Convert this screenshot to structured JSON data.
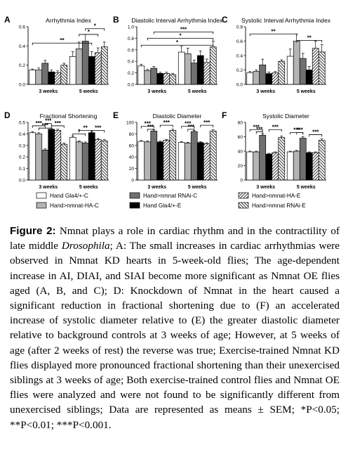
{
  "figure": {
    "legend": [
      {
        "label": "Hand Gla4/+-C",
        "color": "#ffffff"
      },
      {
        "label": "Hand>nmnat RNAi-C",
        "color": "#707070"
      },
      {
        "label": "Hand>nmnat-HA-E",
        "color": "hatch"
      },
      {
        "label": "Hand>nmnat-HA-C",
        "color": "#b4b4b4"
      },
      {
        "label": "Hand Gla4/+-E",
        "color": "#000000"
      },
      {
        "label": "Hand>nmnat RNAi-E",
        "color": "hatch2"
      }
    ],
    "group_labels": [
      "3 weeks",
      "5 weeks"
    ]
  },
  "chart_data": [
    {
      "panel": "A",
      "type": "bar",
      "title": "Arrhythmia Index",
      "ylim": [
        0,
        0.6
      ],
      "yticks": [
        "0.0",
        "0.2",
        "0.4",
        "0.6"
      ],
      "categories": [
        "3 weeks",
        "5 weeks"
      ],
      "series": [
        {
          "name": "Hand Gla4/+-C",
          "values": [
            0.15,
            0.29
          ],
          "err": [
            0.01,
            0.05
          ]
        },
        {
          "name": "Hand>nmnat-HA-C",
          "values": [
            0.15,
            0.37
          ],
          "err": [
            0.02,
            0.07
          ]
        },
        {
          "name": "Hand>nmnat RNAi-C",
          "values": [
            0.22,
            0.45
          ],
          "err": [
            0.03,
            0.07
          ]
        },
        {
          "name": "Hand Gla4/+-E",
          "values": [
            0.13,
            0.29
          ],
          "err": [
            0.02,
            0.05
          ]
        },
        {
          "name": "Hand>nmnat-HA-E",
          "values": [
            0.12,
            0.33
          ],
          "err": [
            0.02,
            0.05
          ]
        },
        {
          "name": "Hand>nmnat RNAi-E",
          "values": [
            0.2,
            0.39
          ],
          "err": [
            0.02,
            0.05
          ]
        }
      ],
      "significance": [
        {
          "label": "**",
          "level": 0.43
        },
        {
          "label": "*",
          "level": 0.52
        },
        {
          "label": "*",
          "level": 0.58
        }
      ]
    },
    {
      "panel": "B",
      "type": "bar",
      "title": "Diastolic Interval Arrhythmia Index",
      "ylim": [
        0,
        1.0
      ],
      "yticks": [
        "0.0",
        "0.2",
        "0.4",
        "0.6",
        "0.8",
        "1.0"
      ],
      "categories": [
        "3 weeks",
        "5 weeks"
      ],
      "series": [
        {
          "name": "Hand Gla4/+-C",
          "values": [
            0.32,
            0.56
          ],
          "err": [
            0.03,
            0.1
          ]
        },
        {
          "name": "Hand>nmnat-HA-C",
          "values": [
            0.24,
            0.53
          ],
          "err": [
            0.02,
            0.1
          ]
        },
        {
          "name": "Hand>nmnat RNAi-C",
          "values": [
            0.28,
            0.37
          ],
          "err": [
            0.03,
            0.05
          ]
        },
        {
          "name": "Hand Gla4/+-E",
          "values": [
            0.19,
            0.5
          ],
          "err": [
            0.02,
            0.08
          ]
        },
        {
          "name": "Hand>nmnat-HA-E",
          "values": [
            0.19,
            0.38
          ],
          "err": [
            0.02,
            0.06
          ]
        },
        {
          "name": "Hand>nmnat RNAi-E",
          "values": [
            0.17,
            0.65
          ],
          "err": [
            0.02,
            0.1
          ]
        }
      ],
      "significance": [
        {
          "label": "*",
          "level": 0.68
        },
        {
          "label": "*",
          "level": 0.8
        },
        {
          "label": "***",
          "level": 0.91
        }
      ]
    },
    {
      "panel": "C",
      "type": "bar",
      "title": "Systolic Interval Arrhythmia Index",
      "ylim": [
        0,
        0.8
      ],
      "yticks": [
        "0.0",
        "0.2",
        "0.4",
        "0.6",
        "0.8"
      ],
      "categories": [
        "3 weeks",
        "5 weeks"
      ],
      "series": [
        {
          "name": "Hand Gla4/+-C",
          "values": [
            0.16,
            0.39
          ],
          "err": [
            0.02,
            0.1
          ]
        },
        {
          "name": "Hand>nmnat-HA-C",
          "values": [
            0.18,
            0.6
          ],
          "err": [
            0.02,
            0.1
          ]
        },
        {
          "name": "Hand>nmnat RNAi-C",
          "values": [
            0.27,
            0.36
          ],
          "err": [
            0.08,
            0.07
          ]
        },
        {
          "name": "Hand Gla4/+-E",
          "values": [
            0.15,
            0.2
          ],
          "err": [
            0.02,
            0.05
          ]
        },
        {
          "name": "Hand>nmnat-HA-E",
          "values": [
            0.16,
            0.5
          ],
          "err": [
            0.02,
            0.1
          ]
        },
        {
          "name": "Hand>nmnat RNAi-E",
          "values": [
            0.32,
            0.45
          ],
          "err": [
            0.02,
            0.1
          ]
        }
      ],
      "significance": [
        {
          "label": "**",
          "level": 0.7
        },
        {
          "label": "**",
          "level": 0.61
        }
      ]
    },
    {
      "panel": "D",
      "type": "bar",
      "title": "Fractional Shortening",
      "ylim": [
        0,
        0.5
      ],
      "yticks": [
        "0.0",
        "0.1",
        "0.2",
        "0.3",
        "0.4",
        "0.5"
      ],
      "categories": [
        "3 weeks",
        "5 weeks"
      ],
      "series": [
        {
          "name": "Hand Gla4/+-C",
          "values": [
            0.41,
            0.37
          ],
          "err": [
            0.01,
            0.01
          ]
        },
        {
          "name": "Hand>nmnat-HA-C",
          "values": [
            0.4,
            0.33
          ],
          "err": [
            0.01,
            0.01
          ]
        },
        {
          "name": "Hand>nmnat RNAi-C",
          "values": [
            0.26,
            0.32
          ],
          "err": [
            0.01,
            0.01
          ]
        },
        {
          "name": "Hand Gla4/+-E",
          "values": [
            0.44,
            0.41
          ],
          "err": [
            0.01,
            0.01
          ]
        },
        {
          "name": "Hand>nmnat-HA-E",
          "values": [
            0.43,
            0.35
          ],
          "err": [
            0.01,
            0.01
          ]
        },
        {
          "name": "Hand>nmnat RNAi-E",
          "values": [
            0.31,
            0.34
          ],
          "err": [
            0.01,
            0.01
          ]
        }
      ],
      "significance": [
        {
          "label": "***",
          "level": 0.47
        },
        {
          "label": "***",
          "level": 0.45
        },
        {
          "label": "***",
          "level": 0.49
        },
        {
          "label": "***",
          "level": 0.47
        },
        {
          "label": "*",
          "level": 0.4
        },
        {
          "label": "**",
          "level": 0.43
        },
        {
          "label": "***",
          "level": 0.43
        }
      ]
    },
    {
      "panel": "E",
      "type": "bar",
      "title": "Diastolic Diameter",
      "ylim": [
        0,
        100
      ],
      "yticks": [
        "0",
        "20",
        "40",
        "60",
        "80",
        "100"
      ],
      "categories": [
        "3 weeks",
        "5 weeks"
      ],
      "series": [
        {
          "name": "Hand Gla4/+-C",
          "values": [
            67,
            65
          ],
          "err": [
            1.5,
            1.5
          ]
        },
        {
          "name": "Hand>nmnat-HA-C",
          "values": [
            66,
            64
          ],
          "err": [
            1.5,
            1.5
          ]
        },
        {
          "name": "Hand>nmnat RNAi-C",
          "values": [
            85,
            84
          ],
          "err": [
            2,
            2
          ]
        },
        {
          "name": "Hand Gla4/+-E",
          "values": [
            66,
            65
          ],
          "err": [
            1.5,
            1.5
          ]
        },
        {
          "name": "Hand>nmnat-HA-E",
          "values": [
            69,
            63
          ],
          "err": [
            1.5,
            1.5
          ]
        },
        {
          "name": "Hand>nmnat RNAi-E",
          "values": [
            86,
            85
          ],
          "err": [
            2,
            2
          ]
        }
      ],
      "significance": [
        {
          "label": "***",
          "level": 93
        },
        {
          "label": "***",
          "level": 88
        },
        {
          "label": "***",
          "level": 95
        },
        {
          "label": "***",
          "level": 93
        },
        {
          "label": "***",
          "level": 88
        },
        {
          "label": "***",
          "level": 95
        }
      ]
    },
    {
      "panel": "F",
      "type": "bar",
      "title": "Systolic Diameter",
      "ylim": [
        0,
        80
      ],
      "yticks": [
        "0",
        "20",
        "40",
        "60",
        "80"
      ],
      "categories": [
        "3 weeks",
        "5 weeks"
      ],
      "series": [
        {
          "name": "Hand Gla4/+-C",
          "values": [
            39,
            39
          ],
          "err": [
            1,
            1
          ]
        },
        {
          "name": "Hand>nmnat-HA-C",
          "values": [
            39,
            40
          ],
          "err": [
            1,
            1
          ]
        },
        {
          "name": "Hand>nmnat RNAi-C",
          "values": [
            62,
            58
          ],
          "err": [
            2,
            2
          ]
        },
        {
          "name": "Hand Gla4/+-E",
          "values": [
            36,
            38
          ],
          "err": [
            1,
            1
          ]
        },
        {
          "name": "Hand>nmnat-HA-E",
          "values": [
            38,
            38
          ],
          "err": [
            1,
            1
          ]
        },
        {
          "name": "Hand>nmnat RNAi-E",
          "values": [
            59,
            55
          ],
          "err": [
            2,
            2
          ]
        }
      ],
      "significance": [
        {
          "label": "***",
          "level": 70
        },
        {
          "label": "***",
          "level": 67
        },
        {
          "label": "***",
          "level": 70
        },
        {
          "label": "***",
          "level": 66
        },
        {
          "label": "***",
          "level": 66
        },
        {
          "label": "***",
          "level": 63
        }
      ]
    }
  ],
  "caption": {
    "label": "Figure 2:",
    "part1": " Nmnat plays a role in cardiac rhythm and in the contractility of late middle ",
    "italic": "Drosophila",
    "part2": "; A: The small increases in cardiac arrhythmias were observed in Nmnat KD hearts in 5-week-old flies; The age-dependent increase in AI, DIAI, and SIAI become more significant as Nmnat OE flies aged (A, B, and C); D: Knockdown of Nmnat in the heart caused a significant reduction in fractional shortening due to (F) an accelerated increase of systolic diameter relative to (E) the greater diastolic diameter relative to background controls at 3 weeks of age; However, at 5 weeks of age (after 2 weeks of rest) the reverse was true; Exercise-trained Nmnat KD flies displayed more pronounced fractional shortening than their unexercised siblings at 3 weeks of age; Both exercise-trained control flies and Nmnat OE flies were analyzed and were not found to be significantly different from unexercised siblings; Data are represented as means ± SEM; *P<0.05; **P<0.01; ***P<0.001."
  }
}
